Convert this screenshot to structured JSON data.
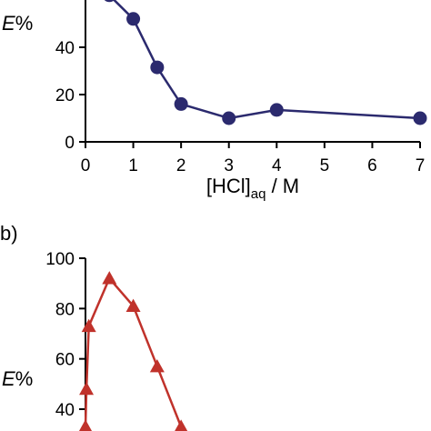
{
  "chart_data": [
    {
      "type": "line",
      "title": "",
      "ylabel_italic": "E",
      "ylabel_rest": "%",
      "xlabel_main": "[HCl]",
      "xlabel_sub": "aq",
      "xlabel_tail": " / M",
      "xlim": [
        0,
        7
      ],
      "ylim": [
        0,
        60
      ],
      "x_ticks": [
        "0",
        "1",
        "2",
        "3",
        "4",
        "5",
        "6",
        "7"
      ],
      "y_ticks": [
        "0",
        "20",
        "40"
      ],
      "series": [
        {
          "marker": "circle",
          "color": "#2b2a6e",
          "points": [
            [
              0.5,
              62
            ],
            [
              1.0,
              52
            ],
            [
              1.5,
              31.5
            ],
            [
              2.0,
              16
            ],
            [
              3.0,
              10
            ],
            [
              4.0,
              13.5
            ],
            [
              7.0,
              10
            ]
          ]
        }
      ]
    },
    {
      "type": "line",
      "panel_label": "b)",
      "ylabel_italic": "E",
      "ylabel_rest": "%",
      "ylim": [
        30,
        100
      ],
      "y_ticks": [
        "100",
        "80",
        "60",
        "40"
      ],
      "series": [
        {
          "marker": "triangle",
          "color": "#c0322b",
          "points": [
            [
              0.0,
              33
            ],
            [
              0.02,
              48
            ],
            [
              0.07,
              73
            ],
            [
              0.5,
              92
            ],
            [
              1.0,
              81
            ],
            [
              1.5,
              57
            ],
            [
              2.0,
              33
            ]
          ]
        }
      ]
    }
  ]
}
